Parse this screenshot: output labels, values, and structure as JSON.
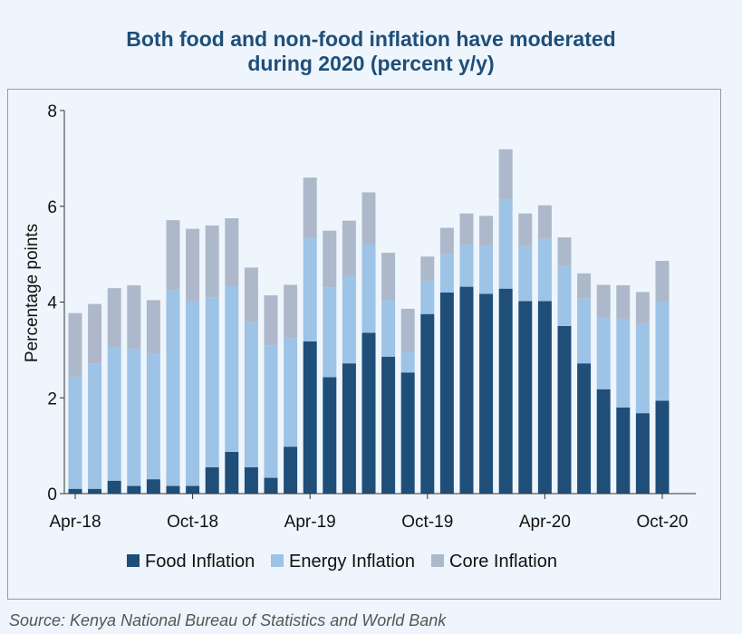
{
  "title": {
    "line1": "Both food and non-food inflation have moderated",
    "line2": "during 2020 (percent y/y)"
  },
  "source": "Source: Kenya National Bureau of Statistics and World Bank",
  "colors": {
    "title": "#1f4e79",
    "food": "#1f4e79",
    "energy": "#9dc3e6",
    "core": "#adb9ca",
    "axis": "#333333"
  },
  "chart_data": {
    "type": "bar",
    "stacked": true,
    "ylabel": "Percentage points",
    "ylim": [
      0,
      8
    ],
    "yticks": [
      0,
      2,
      4,
      6,
      8
    ],
    "x_tick_labels": [
      {
        "index": 0,
        "label": "Apr-18"
      },
      {
        "index": 6,
        "label": "Oct-18"
      },
      {
        "index": 12,
        "label": "Apr-19"
      },
      {
        "index": 18,
        "label": "Oct-19"
      },
      {
        "index": 24,
        "label": "Apr-20"
      },
      {
        "index": 30,
        "label": "Oct-20"
      }
    ],
    "categories": [
      "Apr-18",
      "May-18",
      "Jun-18",
      "Jul-18",
      "Aug-18",
      "Sep-18",
      "Oct-18",
      "Nov-18",
      "Dec-18",
      "Jan-19",
      "Feb-19",
      "Mar-19",
      "Apr-19",
      "May-19",
      "Jun-19",
      "Jul-19",
      "Aug-19",
      "Sep-19",
      "Oct-19",
      "Nov-19",
      "Dec-19",
      "Jan-20",
      "Feb-20",
      "Mar-20",
      "Apr-20",
      "May-20",
      "Jun-20",
      "Jul-20",
      "Aug-20",
      "Sep-20",
      "Oct-20"
    ],
    "legend_position": "bottom",
    "series": [
      {
        "name": "Food Inflation",
        "color": "#1f4e79",
        "values": [
          0.1,
          0.1,
          0.27,
          0.16,
          0.3,
          0.16,
          0.16,
          0.55,
          0.87,
          0.55,
          0.33,
          0.98,
          3.18,
          2.43,
          2.72,
          3.36,
          2.86,
          2.53,
          3.75,
          4.2,
          4.32,
          4.17,
          4.28,
          4.02,
          4.02,
          3.5,
          2.72,
          2.18,
          1.8,
          1.68,
          1.94
        ]
      },
      {
        "name": "Energy Inflation",
        "color": "#9dc3e6",
        "values": [
          2.34,
          2.62,
          2.78,
          2.87,
          2.62,
          4.09,
          3.86,
          3.54,
          3.46,
          3.03,
          2.77,
          2.27,
          2.15,
          1.88,
          1.82,
          1.85,
          1.18,
          0.43,
          0.68,
          0.8,
          0.88,
          1.0,
          1.86,
          1.15,
          1.3,
          1.25,
          1.35,
          1.5,
          1.85,
          1.88,
          2.06
        ]
      },
      {
        "name": "Core Inflation",
        "color": "#adb9ca",
        "values": [
          1.33,
          1.24,
          1.24,
          1.32,
          1.12,
          1.46,
          1.51,
          1.51,
          1.42,
          1.14,
          1.04,
          1.11,
          1.27,
          1.18,
          1.16,
          1.08,
          0.99,
          0.9,
          0.52,
          0.55,
          0.65,
          0.63,
          1.05,
          0.68,
          0.7,
          0.6,
          0.53,
          0.68,
          0.7,
          0.65,
          0.86
        ]
      }
    ]
  }
}
